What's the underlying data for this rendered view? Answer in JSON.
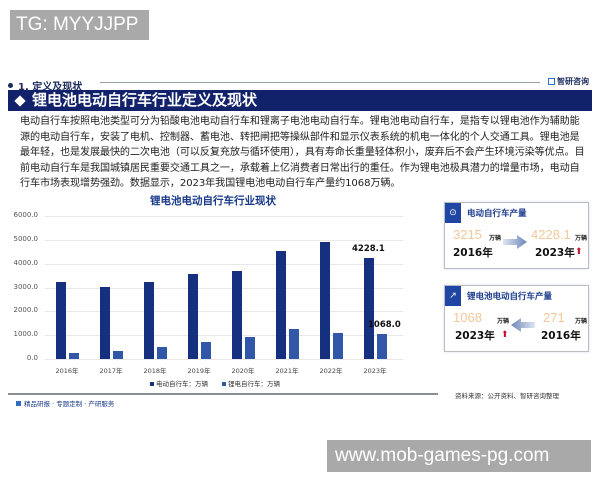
{
  "overlay_top": "TG: MYYJJPP",
  "overlay_bottom": "www.mob-games-pg.com",
  "section": {
    "number_label": "1. 定义及现状"
  },
  "brand": {
    "logo_text": "智研咨询"
  },
  "banner": {
    "title": "锂电池电动自行车行业定义及现状"
  },
  "paragraph": "电动自行车按照电池类型可分为铅酸电池电动自行车和锂离子电池电动自行车。锂电池电动自行车，是指专以锂电池作为辅助能源的电动自行车，安装了电机、控制器、蓄电池、转把闸把等操纵部件和显示仪表系统的机电一体化的个人交通工具。锂电池是最年轻，也是发展最快的二次电池（可以反复充放与循环使用），具有寿命长重量轻体积小，废弃后不会产生环境污染等优点。目前电动自行车是我国城镇居民重要交通工具之一，承载着上亿消费者日常出行的重任。作为锂电池极具潜力的增量市场，电动自行车市场表现增势强劲。数据显示，2023年我国锂电池电动自行车产量约1068万辆。",
  "chart_data": {
    "type": "bar",
    "title": "锂电池电动自行车行业现状",
    "categories": [
      "2016年",
      "2017年",
      "2018年",
      "2019年",
      "2020年",
      "2021年",
      "2022年",
      "2023年"
    ],
    "series": [
      {
        "name": "电动自行车：万辆",
        "color": "#15307e",
        "values": [
          3215,
          3040,
          3230,
          3580,
          3690,
          4530,
          4910,
          4228.1
        ]
      },
      {
        "name": "锂电自行车：万辆",
        "color": "#3256a8",
        "values": [
          271,
          340,
          520,
          700,
          910,
          1260,
          1100,
          1068.0
        ]
      }
    ],
    "data_labels": {
      "2023年_电动自行车": "4228.1",
      "2023年_锂电自行车": "1068.0"
    },
    "yticks": [
      "0.0",
      "1000.0",
      "2000.0",
      "3000.0",
      "4000.0",
      "5000.0",
      "6000.0"
    ],
    "ylim": [
      0,
      6000
    ],
    "xlabel": "",
    "ylabel": "",
    "grid": true,
    "legend_position": "bottom"
  },
  "cards": [
    {
      "title": "电动自行车产量",
      "icon": "bike-icon",
      "left": {
        "value": "3215",
        "unit": "万辆",
        "year": "2016年"
      },
      "right": {
        "value": "4228.1",
        "unit": "万辆",
        "year": "2023年"
      },
      "direction": "right"
    },
    {
      "title": "锂电池电动自行车产量",
      "icon": "chart-up-icon",
      "left": {
        "value": "1068",
        "unit": "万辆",
        "year": "2023年"
      },
      "right": {
        "value": "271",
        "unit": "万辆",
        "year": "2016年"
      },
      "direction": "left"
    }
  ],
  "footer": {
    "left": "精品研报 · 专题定制 · 产研服务",
    "source": "资料来源：公开资料、智研咨询整理"
  }
}
